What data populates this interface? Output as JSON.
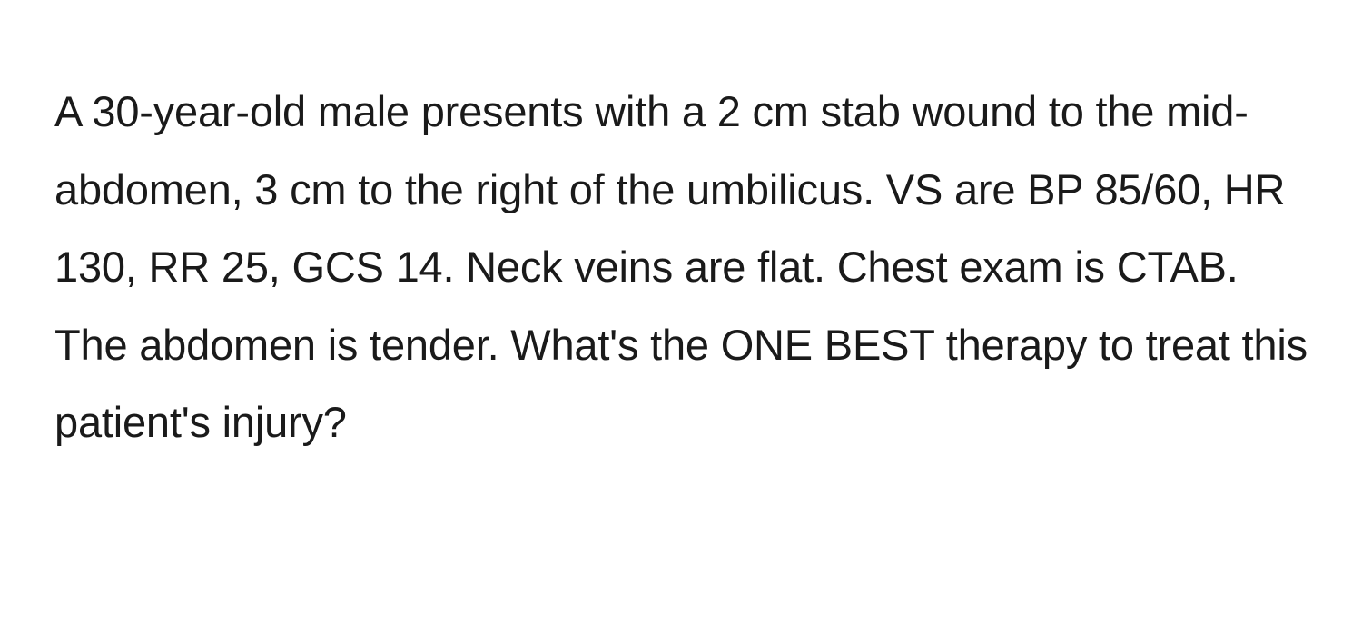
{
  "question": {
    "text": "A 30-year-old male presents with a 2 cm stab wound to the mid-abdomen, 3 cm to the right of the umbilicus. VS are BP 85/60, HR 130, RR 25, GCS 14. Neck veins are flat. Chest exam is CTAB. The abdomen is tender. What's the ONE BEST therapy to treat this patient's injury?",
    "font_size": 47,
    "line_height": 1.82,
    "text_color": "#1a1a1a",
    "background_color": "#ffffff",
    "font_weight": 400
  }
}
